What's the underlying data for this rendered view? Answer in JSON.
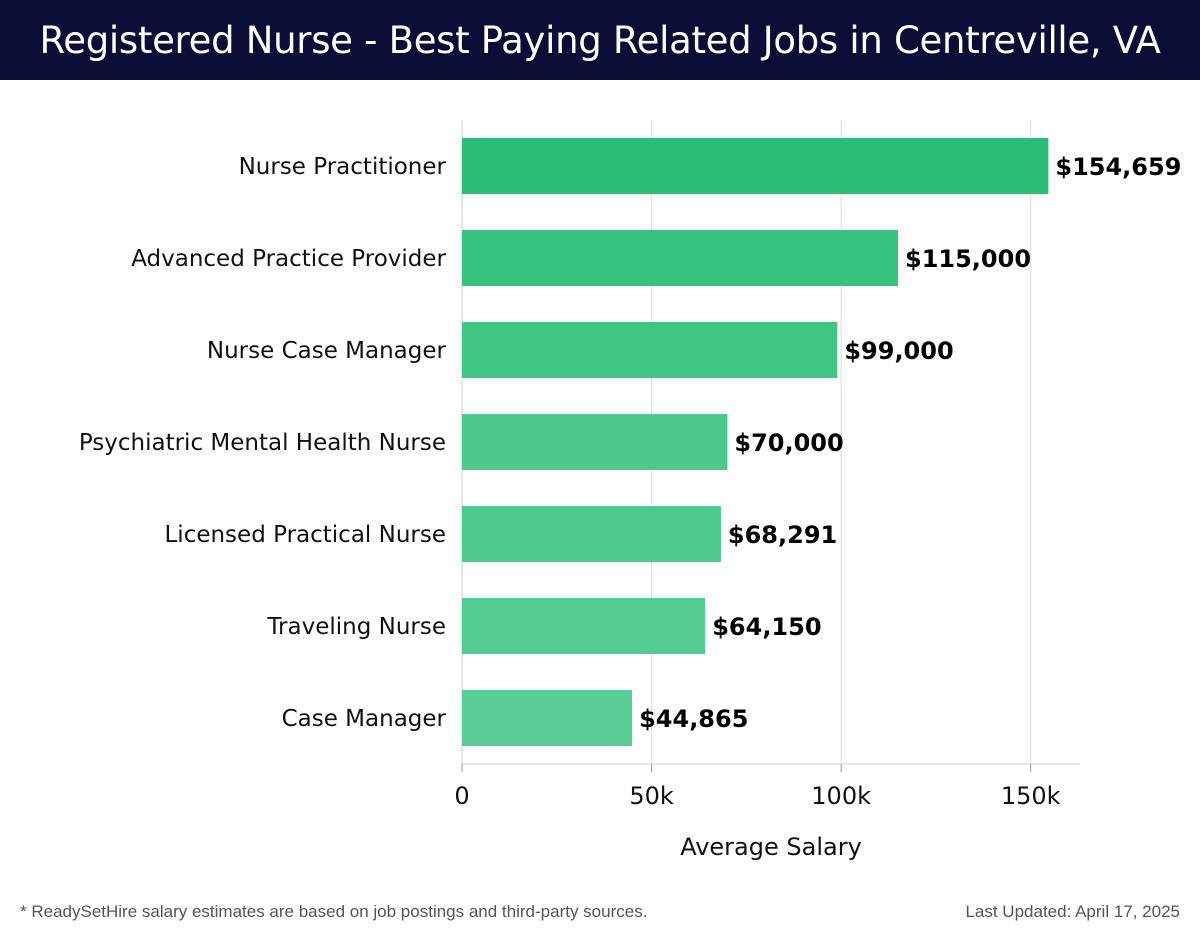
{
  "header": {
    "title": "Registered Nurse - Best Paying Related Jobs in Centreville, VA",
    "background": "#0b0d36"
  },
  "chart_data": {
    "type": "bar",
    "orientation": "horizontal",
    "title": "Registered Nurse - Best Paying Related Jobs in Centreville, VA",
    "xlabel": "Average Salary",
    "ylabel": "",
    "xlim": [
      0,
      163000
    ],
    "x_ticks": [
      0,
      50000,
      100000,
      150000
    ],
    "x_tick_labels": [
      "0",
      "50k",
      "100k",
      "150k"
    ],
    "grid": "vertical",
    "categories": [
      "Nurse Practitioner",
      "Advanced Practice Provider",
      "Nurse Case Manager",
      "Psychiatric Mental Health Nurse",
      "Licensed Practical Nurse",
      "Traveling Nurse",
      "Case Manager"
    ],
    "values": [
      154659,
      115000,
      99000,
      70000,
      68291,
      64150,
      44865
    ],
    "data_labels": [
      "$154,659",
      "$115,000",
      "$99,000",
      "$70,000",
      "$68,291",
      "$64,150",
      "$44,865"
    ],
    "bar_colors": [
      "#2bbd75",
      "#36c27f",
      "#40c583",
      "#4cc88b",
      "#4fca8e",
      "#54cb91",
      "#5ccc96"
    ]
  },
  "footer": {
    "note": "* ReadySetHire salary estimates are based on job postings and third-party sources.",
    "updated": "Last Updated: April 17, 2025"
  }
}
